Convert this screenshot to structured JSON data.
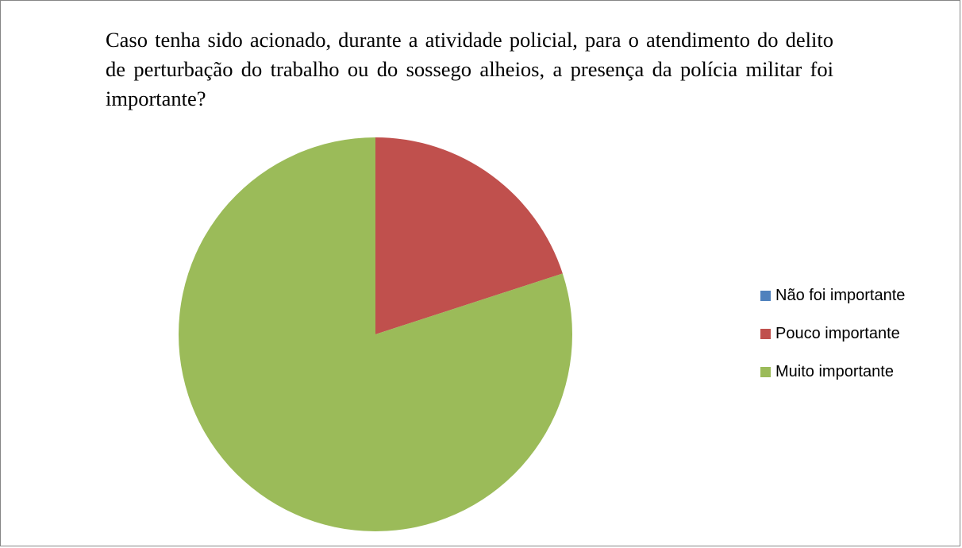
{
  "chart_data": {
    "type": "pie",
    "title": "Caso tenha sido acionado, durante a atividade policial, para o atendimento do delito de perturbação do trabalho ou do sossego alheios, a presença da polícia militar foi importante?",
    "categories": [
      "Não foi importante",
      "Pouco importante",
      "Muito importante"
    ],
    "values": [
      0,
      20,
      80
    ],
    "colors": [
      "#4F81BD",
      "#C0504D",
      "#9BBB59"
    ],
    "legend_position": "right",
    "start_angle": "top",
    "direction": "clockwise"
  }
}
